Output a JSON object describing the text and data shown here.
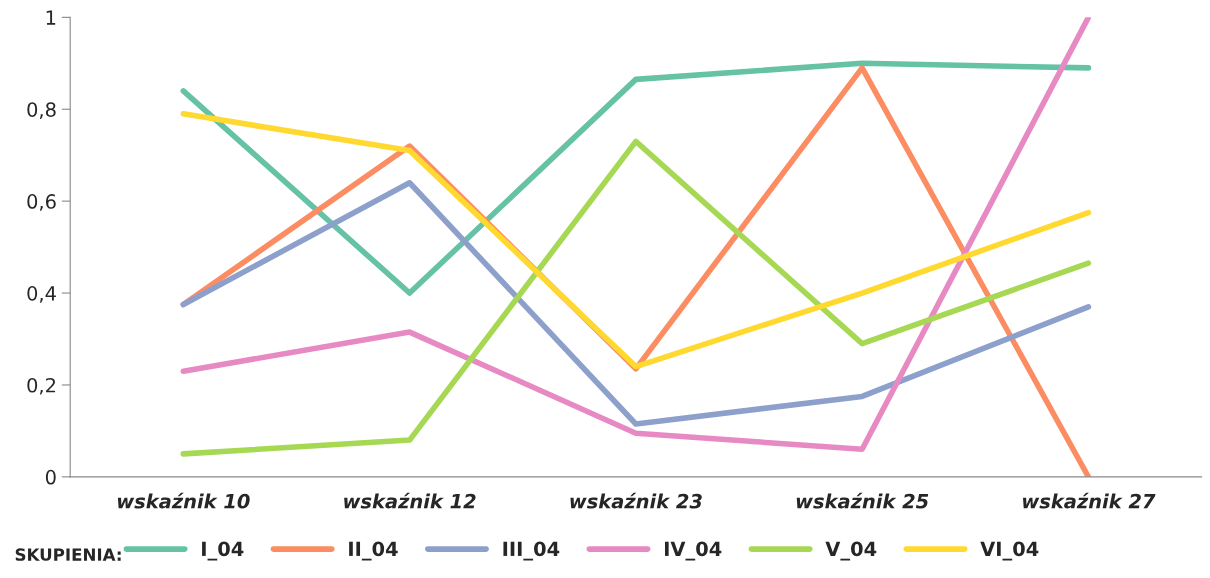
{
  "chart_data": {
    "type": "line",
    "categories": [
      "wskaźnik 10",
      "wskaźnik 12",
      "wskaźnik 23",
      "wskaźnik 25",
      "wskaźnik 27"
    ],
    "series": [
      {
        "name": "I_04",
        "color": "#66c2a5",
        "values": [
          0.84,
          0.4,
          0.865,
          0.9,
          0.89
        ]
      },
      {
        "name": "II_04",
        "color": "#fc8d62",
        "values": [
          0.375,
          0.72,
          0.235,
          0.89,
          0
        ]
      },
      {
        "name": "III_04",
        "color": "#8da0cb",
        "values": [
          0.375,
          0.64,
          0.115,
          0.175,
          0.37
        ]
      },
      {
        "name": "IV_04",
        "color": "#e78ac3",
        "values": [
          0.23,
          0.315,
          0.095,
          0.06,
          1.0
        ]
      },
      {
        "name": "V_04",
        "color": "#a6d854",
        "values": [
          0.05,
          0.08,
          0.73,
          0.29,
          0.465
        ]
      },
      {
        "name": "VI_04",
        "color": "#ffd92f",
        "values": [
          0.79,
          0.71,
          0.24,
          0.4,
          0.575
        ]
      }
    ],
    "legend_title": "SKUPIENIA:",
    "legend": "bottom",
    "ylim": [
      0,
      1
    ],
    "yticks": [
      {
        "value": 0,
        "label": "0"
      },
      {
        "value": 0.2,
        "label": "0,2"
      },
      {
        "value": 0.4,
        "label": "0,4"
      },
      {
        "value": 0.6,
        "label": "0,6"
      },
      {
        "value": 0.8,
        "label": "0,8"
      },
      {
        "value": 1,
        "label": "1"
      }
    ],
    "grid": false,
    "marker": "none",
    "line_style": "solid"
  }
}
